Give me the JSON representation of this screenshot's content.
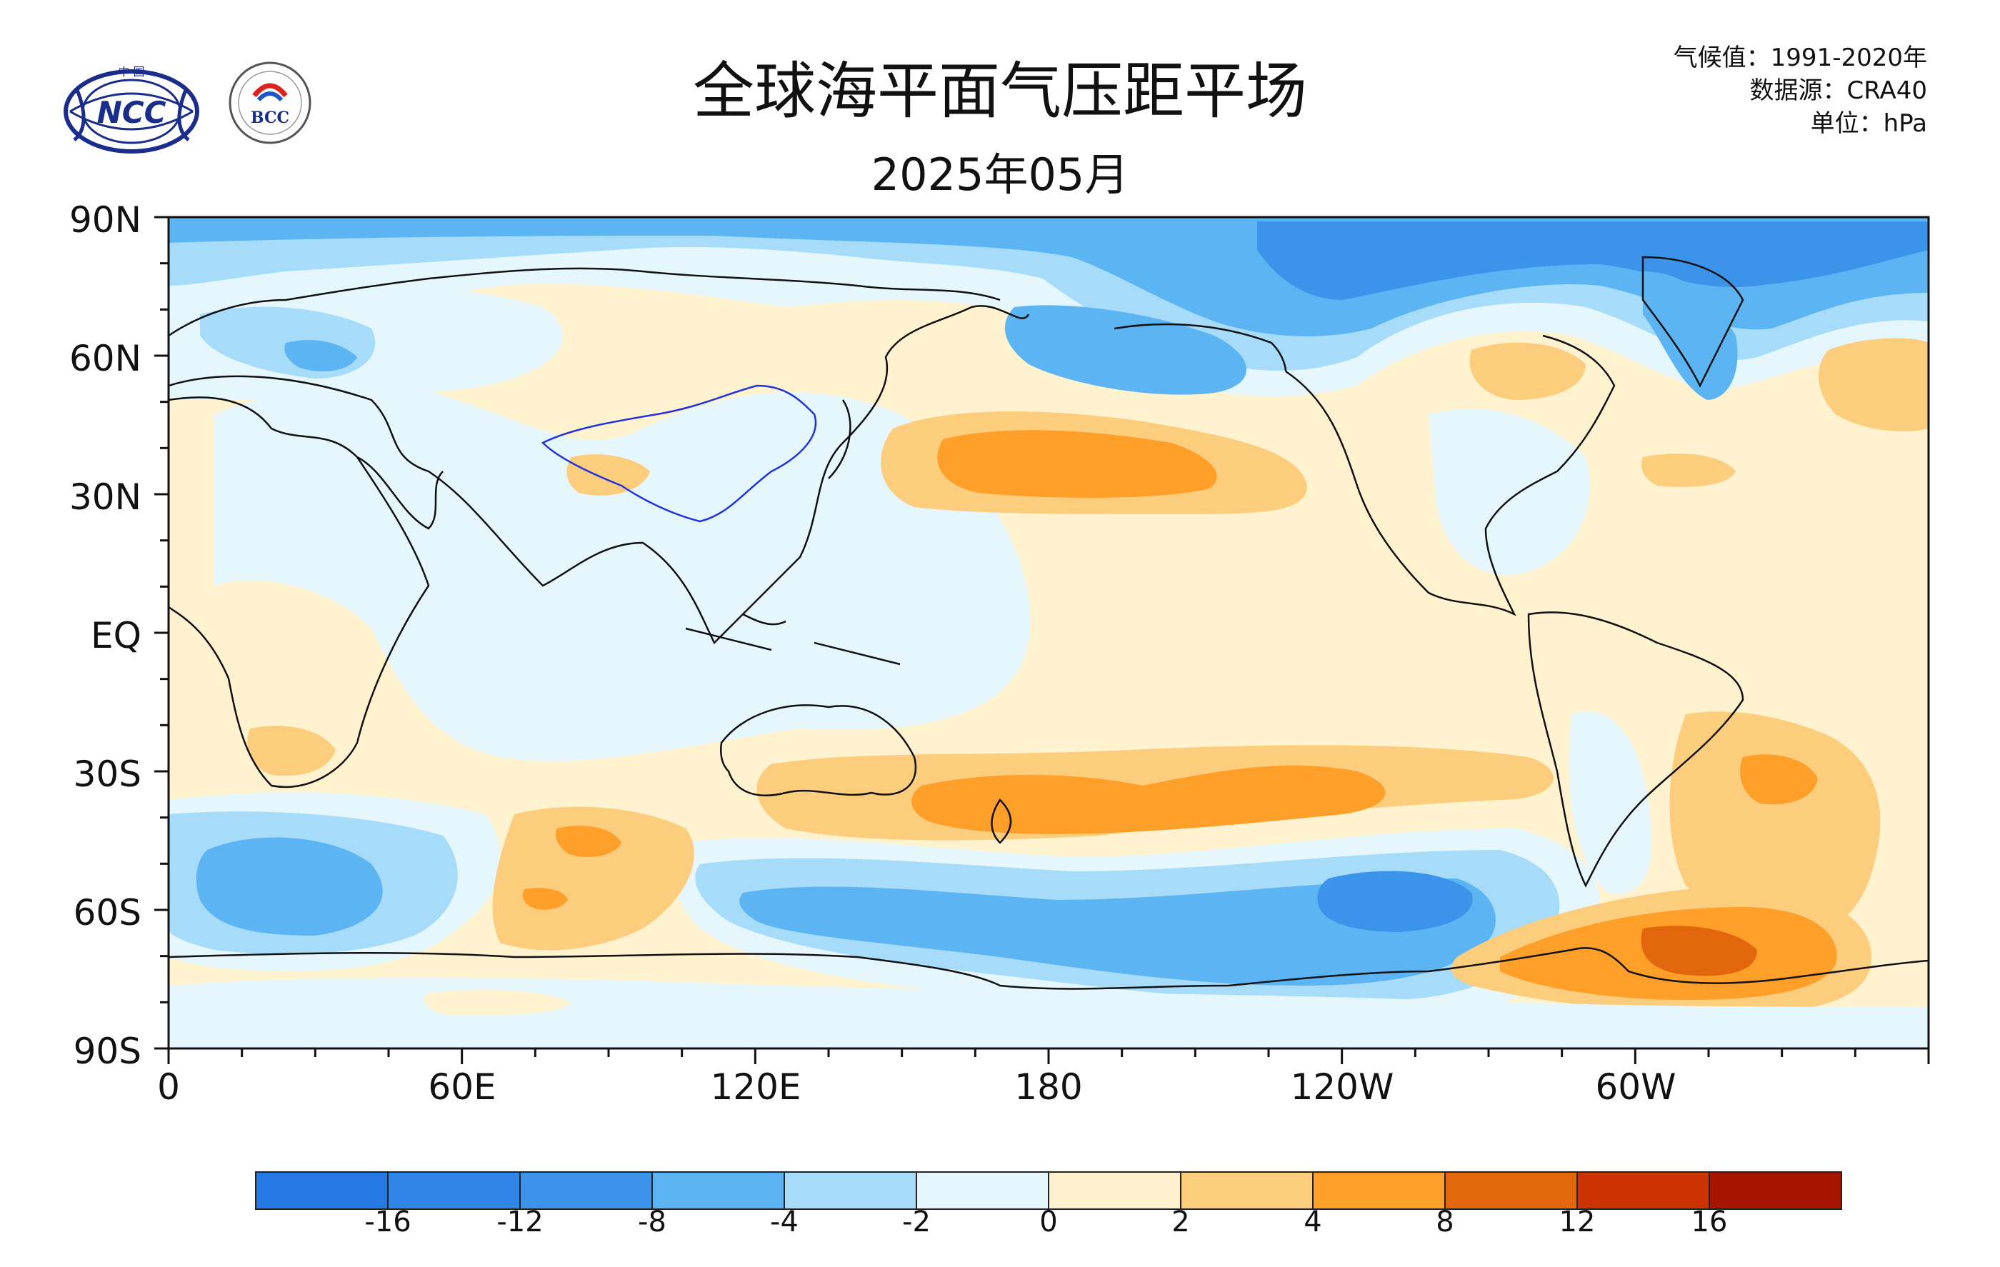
{
  "header": {
    "title": "全球海平面气压距平场",
    "subtitle": "2025年05月",
    "climatology": "气候值：1991-2020年",
    "source": "数据源：CRA40",
    "unit": "单位：hPa"
  },
  "logos": {
    "ncc_text": "NCC",
    "ncc_top_text": "中 国",
    "bcc_text": "BCC"
  },
  "axes": {
    "y_ticks": [
      "90N",
      "60N",
      "30N",
      "EQ",
      "30S",
      "60S",
      "90S"
    ],
    "x_ticks": [
      "0",
      "60E",
      "120E",
      "180",
      "120W",
      "60W"
    ]
  },
  "colorbar": {
    "colors": [
      "#2479e4",
      "#2f86e6",
      "#3b93ea",
      "#5cb5f2",
      "#a6dcfa",
      "#e6f6fd",
      "#fff2cf",
      "#fdcd7e",
      "#fd9f28",
      "#e2670c",
      "#cc3300",
      "#a51500"
    ],
    "labels": [
      "-16",
      "-12",
      "-8",
      "-4",
      "-2",
      "0",
      "2",
      "4",
      "8",
      "12",
      "16"
    ]
  },
  "map_colors": {
    "pos_light": "#fff2cf",
    "pos_mid": "#fdcd7e",
    "pos_strong": "#fd9f28",
    "pos_vstrong": "#e2670c",
    "neg_light": "#e6f6fd",
    "neg_mid": "#a6dcfa",
    "neg_strong": "#5cb5f2",
    "neg_vstrong": "#3b93ea",
    "neg_xstrong": "#2f86e6"
  }
}
